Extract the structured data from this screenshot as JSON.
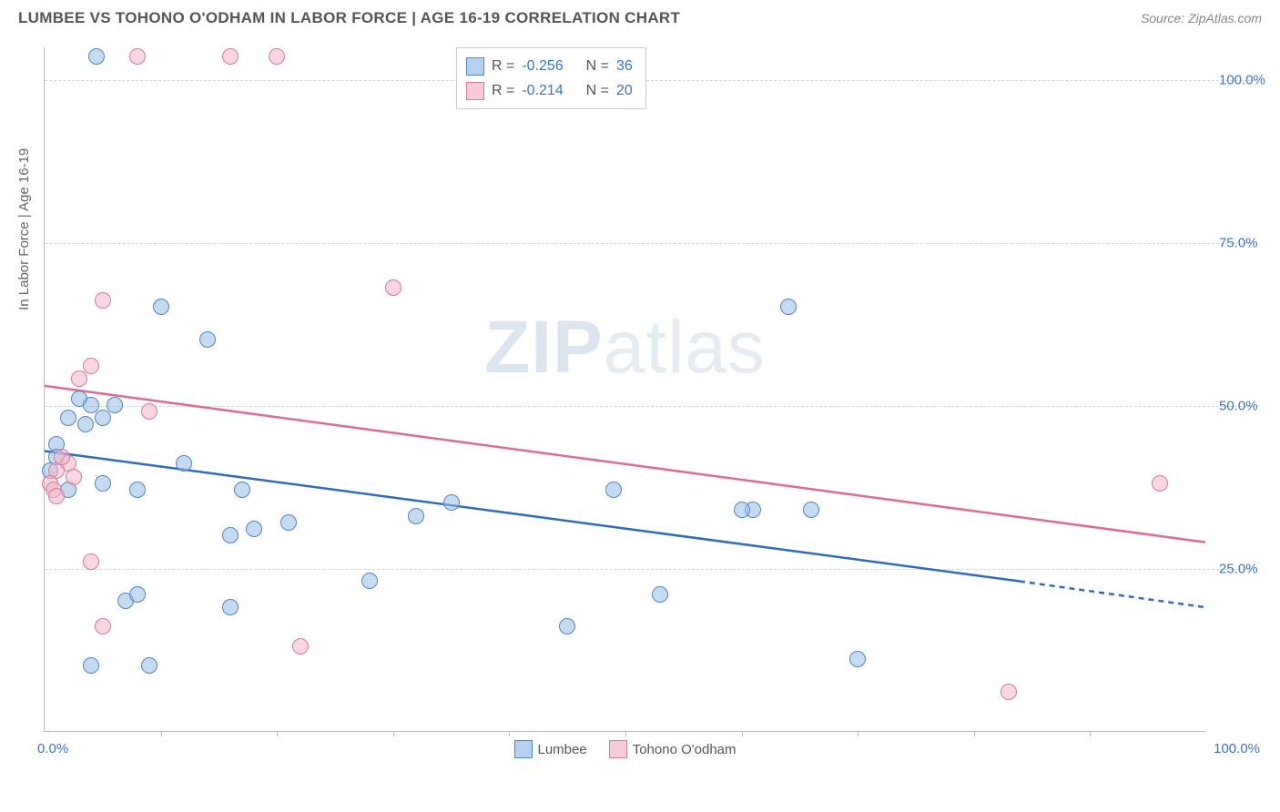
{
  "header": {
    "title": "LUMBEE VS TOHONO O'ODHAM IN LABOR FORCE | AGE 16-19 CORRELATION CHART",
    "source": "Source: ZipAtlas.com"
  },
  "chart": {
    "type": "scatter",
    "ylabel": "In Labor Force | Age 16-19",
    "xlim": [
      0,
      100
    ],
    "ylim": [
      0,
      105
    ],
    "xlim_labels": {
      "min": "0.0%",
      "max": "100.0%"
    },
    "y_gridlines": [
      25,
      50,
      75,
      100
    ],
    "y_tick_labels": [
      "25.0%",
      "50.0%",
      "75.0%",
      "100.0%"
    ],
    "x_ticks": [
      10,
      20,
      30,
      40,
      50,
      60,
      70,
      80,
      90
    ],
    "tick_label_color": "#3b74c4",
    "axis_label_color": "#666666",
    "grid_color": "#d5d5d5",
    "background_color": "#ffffff",
    "marker_size": 18,
    "series": [
      {
        "name": "Lumbee",
        "color_fill": "rgba(151,189,232,0.55)",
        "color_stroke": "#4e86c6",
        "R": "-0.256",
        "N": "36",
        "trend": {
          "x1": 0,
          "y1": 43,
          "x2": 84,
          "y2": 23,
          "dash_x2": 100,
          "dash_y2": 19,
          "color": "#2e6cc0",
          "width": 2.5
        },
        "points": [
          [
            4.5,
            103.5
          ],
          [
            3,
            51
          ],
          [
            4,
            50
          ],
          [
            2,
            48
          ],
          [
            6,
            50
          ],
          [
            5,
            48
          ],
          [
            5,
            38
          ],
          [
            8,
            37
          ],
          [
            10,
            65
          ],
          [
            7,
            20
          ],
          [
            1,
            44
          ],
          [
            1,
            42
          ],
          [
            0.5,
            40
          ],
          [
            9,
            10
          ],
          [
            4,
            10
          ],
          [
            14,
            60
          ],
          [
            12,
            41
          ],
          [
            16,
            19
          ],
          [
            17,
            37
          ],
          [
            18,
            31
          ],
          [
            21,
            32
          ],
          [
            16,
            30
          ],
          [
            28,
            23
          ],
          [
            32,
            33
          ],
          [
            35,
            35
          ],
          [
            49,
            37
          ],
          [
            45,
            16
          ],
          [
            53,
            21
          ],
          [
            61,
            34
          ],
          [
            64,
            65
          ],
          [
            60,
            34
          ],
          [
            66,
            34
          ],
          [
            70,
            11
          ],
          [
            8,
            21
          ],
          [
            2,
            37
          ],
          [
            3.5,
            47
          ]
        ]
      },
      {
        "name": "Tohono O'odham",
        "color_fill": "rgba(244,180,200,0.55)",
        "color_stroke": "#d87a9a",
        "R": "-0.214",
        "N": "20",
        "trend": {
          "x1": 0,
          "y1": 53,
          "x2": 100,
          "y2": 29,
          "color": "#e06a93",
          "width": 2.5
        },
        "points": [
          [
            8,
            103.5
          ],
          [
            16,
            103.5
          ],
          [
            20,
            103.5
          ],
          [
            5,
            66
          ],
          [
            4,
            56
          ],
          [
            3,
            54
          ],
          [
            9,
            49
          ],
          [
            2,
            41
          ],
          [
            1,
            40
          ],
          [
            0.5,
            38
          ],
          [
            1.5,
            42
          ],
          [
            2.5,
            39
          ],
          [
            0.8,
            37
          ],
          [
            4,
            26
          ],
          [
            5,
            16
          ],
          [
            22,
            13
          ],
          [
            30,
            68
          ],
          [
            83,
            6
          ],
          [
            96,
            38
          ],
          [
            1,
            36
          ]
        ]
      }
    ],
    "watermark": {
      "bold": "ZIP",
      "light": "atlas"
    }
  },
  "stats_box": {
    "r_label": "R =",
    "n_label": "N ="
  },
  "bottom_legend": {
    "series_a": "Lumbee",
    "series_b": "Tohono O'odham"
  }
}
